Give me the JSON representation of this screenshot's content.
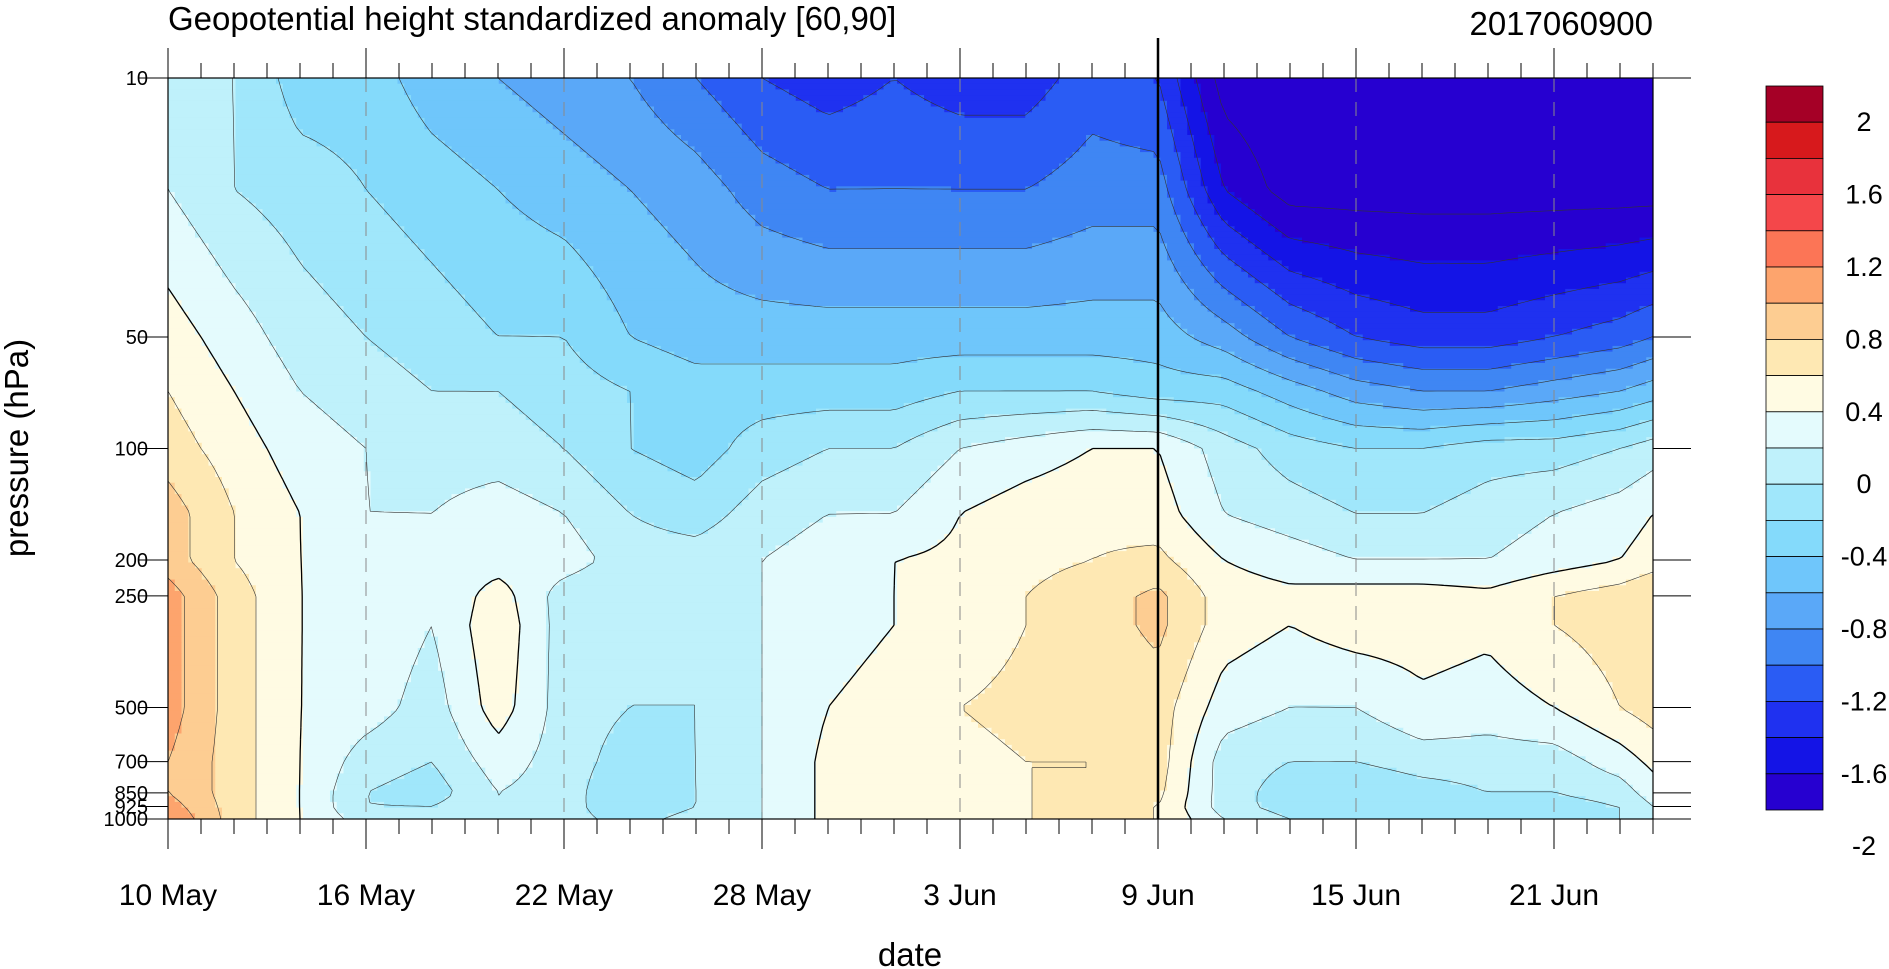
{
  "chart_data": {
    "type": "heatmap",
    "title": "Geopotential height standardized anomaly [60,90]",
    "date_stamp": "2017060900",
    "xlabel": "date",
    "ylabel": "pressure (hPa)",
    "y_scale": "log",
    "y_reversed": true,
    "ylim": [
      1000,
      10
    ],
    "y_ticks": [
      {
        "value": 10,
        "label": "10"
      },
      {
        "value": 50,
        "label": "50"
      },
      {
        "value": 100,
        "label": "100"
      },
      {
        "value": 200,
        "label": "200"
      },
      {
        "value": 250,
        "label": "250"
      },
      {
        "value": 500,
        "label": "500"
      },
      {
        "value": 700,
        "label": "700"
      },
      {
        "value": 850,
        "label": "850"
      },
      {
        "value": 925,
        "label": "925"
      },
      {
        "value": 1000,
        "label": "1000"
      }
    ],
    "x_ticks": [
      "10 May",
      "16 May",
      "22 May",
      "28 May",
      "3 Jun",
      "9 Jun",
      "15 Jun",
      "21 Jun"
    ],
    "x_tick_day_index": [
      0,
      6,
      12,
      18,
      24,
      30,
      36,
      42
    ],
    "x_range_days": [
      0,
      45
    ],
    "forecast_start_day_index": 30,
    "colorbar": {
      "labels": [
        "2",
        "1.6",
        "1.2",
        "0.8",
        "0.4",
        "0",
        "-0.4",
        "-0.8",
        "-1.2",
        "-1.6",
        "-2"
      ],
      "colors": [
        "#a50026",
        "#d7191c",
        "#e8323c",
        "#f4474a",
        "#fc7556",
        "#fda46d",
        "#fdcd92",
        "#fee8b3",
        "#fffbe3",
        "#e4fbfd",
        "#bff1fb",
        "#a0e7fb",
        "#84dafb",
        "#6fc6fb",
        "#5aa8f8",
        "#3f86f3",
        "#2a5cf4",
        "#1f31f0",
        "#1414e6",
        "#2600d0"
      ]
    },
    "levels": [
      -2.2,
      -2.0,
      -1.8,
      -1.6,
      -1.4,
      -1.2,
      -1.0,
      -0.8,
      -0.6,
      -0.4,
      -0.2,
      0,
      0.2,
      0.4,
      0.6
    ],
    "level_colors": [
      "#2600d0",
      "#1414e6",
      "#1f31f0",
      "#2a5cf4",
      "#3f86f3",
      "#5aa8f8",
      "#6fc6fb",
      "#84dafb",
      "#a0e7fb",
      "#bff1fb",
      "#e4fbfd",
      "#fffbe3",
      "#fee8b3",
      "#fdcd92",
      "#fda46d"
    ],
    "grid_pressures": [
      10,
      20,
      50,
      70,
      100,
      150,
      200,
      250,
      300,
      500,
      700,
      850,
      925,
      1000
    ],
    "grid_days": [
      0,
      2,
      4,
      6,
      8,
      10,
      12,
      14,
      16,
      18,
      20,
      22,
      24,
      26,
      28,
      30,
      32,
      34,
      36,
      38,
      40,
      42,
      44,
      45
    ],
    "anomaly": [
      [
        -0.3,
        -0.4,
        -0.7,
        -0.7,
        -0.9,
        -1.0,
        -1.1,
        -1.2,
        -1.4,
        -1.6,
        -1.7,
        -1.6,
        -1.7,
        -1.7,
        -1.5,
        -1.6,
        -2.3,
        -2.4,
        -2.4,
        -2.4,
        -2.4,
        -2.4,
        -2.4,
        -2.4
      ],
      [
        -0.2,
        -0.4,
        -0.5,
        -0.6,
        -0.7,
        -0.8,
        -0.9,
        -1.0,
        -1.1,
        -1.3,
        -1.4,
        -1.4,
        -1.4,
        -1.4,
        -1.3,
        -1.3,
        -2.0,
        -2.3,
        -2.3,
        -2.3,
        -2.3,
        -2.3,
        -2.3,
        -2.3
      ],
      [
        0.1,
        -0.1,
        -0.3,
        -0.4,
        -0.5,
        -0.6,
        -0.6,
        -0.8,
        -0.9,
        -0.9,
        -0.9,
        -0.9,
        -0.9,
        -0.9,
        -0.9,
        -0.9,
        -1.1,
        -1.4,
        -1.6,
        -1.7,
        -1.7,
        -1.6,
        -1.5,
        -1.4
      ],
      [
        0.2,
        0.0,
        -0.2,
        -0.3,
        -0.4,
        -0.4,
        -0.5,
        -0.6,
        -0.7,
        -0.7,
        -0.7,
        -0.7,
        -0.6,
        -0.6,
        -0.6,
        -0.7,
        -0.7,
        -0.9,
        -1.1,
        -1.2,
        -1.2,
        -1.1,
        -1.0,
        -0.9
      ],
      [
        0.3,
        0.1,
        -0.1,
        -0.2,
        -0.3,
        -0.3,
        -0.4,
        -0.6,
        -0.7,
        -0.5,
        -0.4,
        -0.4,
        -0.2,
        -0.1,
        0.0,
        0.0,
        -0.3,
        -0.5,
        -0.6,
        -0.6,
        -0.5,
        -0.5,
        -0.4,
        -0.3
      ],
      [
        0.5,
        0.2,
        0.0,
        -0.2,
        -0.2,
        -0.1,
        -0.2,
        -0.4,
        -0.5,
        -0.3,
        -0.2,
        -0.2,
        0.0,
        0.1,
        0.15,
        0.1,
        -0.2,
        -0.3,
        -0.4,
        -0.4,
        -0.3,
        -0.2,
        -0.1,
        0.0
      ],
      [
        0.5,
        0.2,
        0.0,
        -0.1,
        -0.1,
        -0.1,
        -0.1,
        -0.3,
        -0.3,
        -0.2,
        -0.1,
        0.0,
        0.05,
        0.15,
        0.2,
        0.25,
        0.0,
        -0.1,
        -0.2,
        -0.2,
        -0.2,
        -0.1,
        0.0,
        0.1
      ],
      [
        0.7,
        0.3,
        0.0,
        -0.05,
        -0.2,
        0.1,
        -0.3,
        -0.4,
        -0.4,
        -0.2,
        -0.1,
        0.0,
        0.1,
        0.2,
        0.3,
        0.45,
        0.1,
        0.05,
        0.1,
        0.1,
        0.05,
        0.2,
        0.3,
        0.4
      ],
      [
        0.7,
        0.3,
        0.0,
        -0.05,
        -0.2,
        0.15,
        -0.3,
        -0.4,
        -0.4,
        -0.2,
        -0.1,
        0.0,
        0.1,
        0.2,
        0.3,
        0.45,
        0.1,
        0.0,
        0.1,
        0.1,
        0.05,
        0.2,
        0.3,
        0.4
      ],
      [
        0.7,
        0.3,
        0.0,
        -0.1,
        -0.3,
        0.1,
        -0.3,
        -0.4,
        -0.4,
        -0.2,
        0.0,
        0.1,
        0.2,
        0.25,
        0.25,
        0.3,
        -0.1,
        -0.2,
        -0.2,
        -0.05,
        -0.1,
        0.0,
        0.2,
        0.3
      ],
      [
        0.6,
        0.3,
        0.0,
        -0.3,
        -0.4,
        -0.1,
        -0.3,
        -0.5,
        -0.4,
        -0.2,
        0.05,
        0.1,
        0.15,
        0.2,
        0.2,
        0.3,
        -0.3,
        -0.4,
        -0.4,
        -0.3,
        -0.3,
        -0.3,
        -0.1,
        0.05
      ],
      [
        0.6,
        0.3,
        0.0,
        -0.4,
        -0.5,
        -0.2,
        -0.3,
        -0.6,
        -0.4,
        -0.2,
        0.05,
        0.1,
        0.15,
        0.2,
        0.2,
        0.25,
        -0.3,
        -0.5,
        -0.6,
        -0.5,
        -0.4,
        -0.4,
        -0.3,
        -0.1
      ],
      [
        0.7,
        0.3,
        0.0,
        -0.4,
        -0.4,
        -0.2,
        -0.3,
        -0.6,
        -0.4,
        -0.2,
        0.05,
        0.1,
        0.15,
        0.2,
        0.2,
        0.2,
        -0.3,
        -0.5,
        -0.6,
        -0.5,
        -0.5,
        -0.5,
        -0.4,
        -0.2
      ],
      [
        0.8,
        0.3,
        0.0,
        -0.3,
        -0.3,
        -0.2,
        -0.3,
        -0.5,
        -0.3,
        -0.2,
        0.05,
        0.1,
        0.15,
        0.2,
        0.2,
        0.2,
        -0.2,
        -0.4,
        -0.5,
        -0.5,
        -0.5,
        -0.5,
        -0.4,
        -0.3
      ]
    ]
  }
}
